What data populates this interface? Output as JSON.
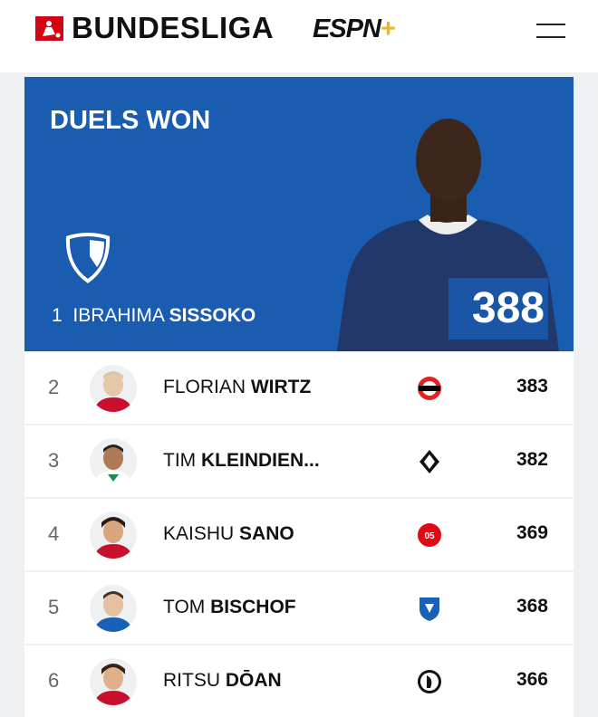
{
  "header": {
    "league_logo_text": "BUNDESLIGA",
    "partner_logo_text": "ESPN",
    "partner_plus": "+",
    "menu_icon": "hamburger-icon"
  },
  "hero": {
    "title": "DUELS WON",
    "rank": "1",
    "first_name": "IBRAHIMA",
    "last_name": "SISSOKO",
    "value": "388",
    "club": "VfL Bochum",
    "club_color": "#1a5cb0"
  },
  "rows": [
    {
      "rank": "2",
      "first_name": "FLORIAN",
      "last_name": "WIRTZ",
      "value": "383",
      "club": "Bayer Leverkusen"
    },
    {
      "rank": "3",
      "first_name": "TIM",
      "last_name": "KLEINDIEN...",
      "value": "382",
      "club": "Borussia Mönchengladbach"
    },
    {
      "rank": "4",
      "first_name": "KAISHU",
      "last_name": "SANO",
      "value": "369",
      "club": "Mainz 05"
    },
    {
      "rank": "5",
      "first_name": "TOM",
      "last_name": "BISCHOF",
      "value": "368",
      "club": "Hoffenheim"
    },
    {
      "rank": "6",
      "first_name": "RITSU",
      "last_name": "DŌAN",
      "value": "366",
      "club": "Freiburg"
    }
  ]
}
